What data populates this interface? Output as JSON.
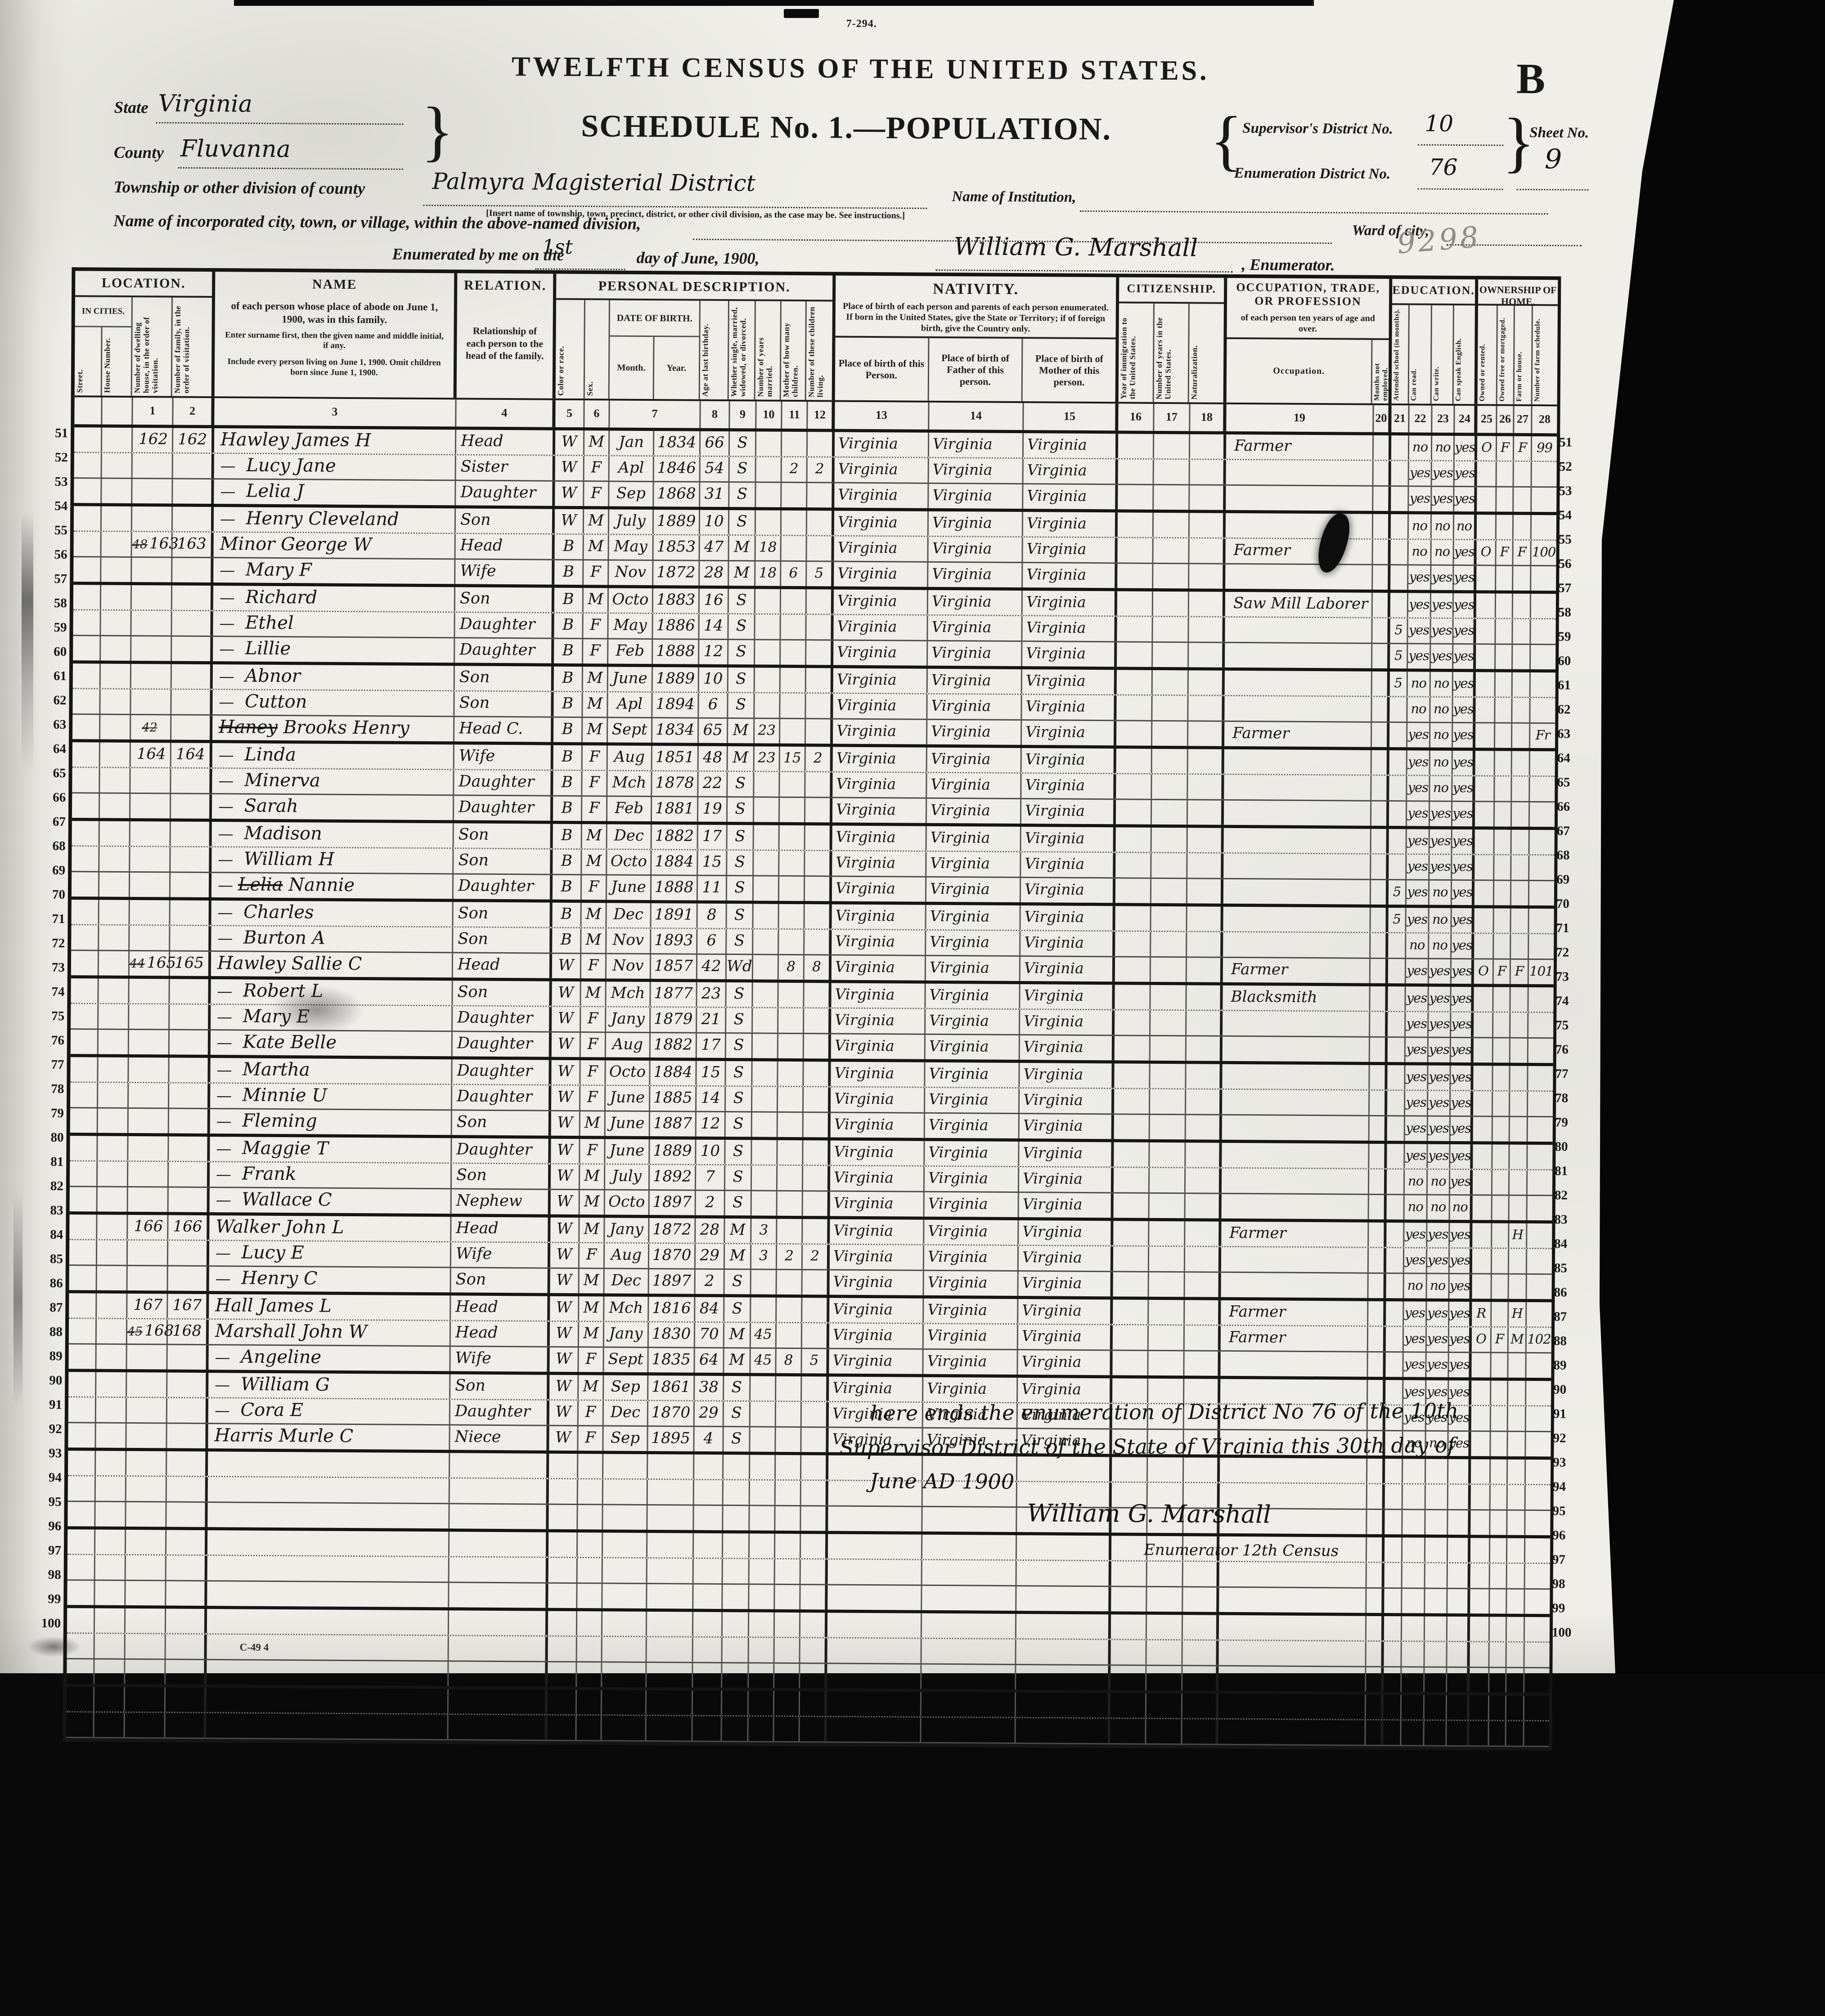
{
  "form": {
    "code": "7-294.",
    "title": "TWELFTH CENSUS OF THE UNITED STATES.",
    "corner_letter": "B",
    "schedule_title": "SCHEDULE No. 1.—POPULATION.",
    "state_label": "State",
    "state_value": "Virginia",
    "county_label": "County",
    "county_value": "Fluvanna",
    "township_label": "Township or other division of county",
    "township_value": "Palmyra Magisterial District",
    "township_note": "[Insert name of township, town, precinct, district, or other civil division, as the case may be.  See instructions.]",
    "institution_label": "Name of Institution,",
    "incorporated_label": "Name of incorporated city, town, or village, within the above-named division,",
    "ward_label": "Ward of city,",
    "supervisor_label": "Supervisor's District No.",
    "supervisor_value": "10",
    "enumeration_label": "Enumeration District No.",
    "enumeration_value": "76",
    "sheet_label": "Sheet No.",
    "sheet_value": "9",
    "enumerated_label_1": "Enumerated by me on the",
    "enumerated_day": "1st",
    "enumerated_label_2": "day of June, 1900,",
    "enumerator_signature": "William G. Marshall",
    "enumerated_label_3": ", Enumerator.",
    "stamp": "9298",
    "bottom_mark": "C-49    4",
    "brace_open": "{",
    "brace_close": "}"
  },
  "table": {
    "groups": {
      "location": "LOCATION.",
      "name": "NAME",
      "relation": "RELATION.",
      "personal": "PERSONAL DESCRIPTION.",
      "nativity": "NATIVITY.",
      "citizenship": "CITIZENSHIP.",
      "occupation": "OCCUPATION, TRADE, OR PROFESSION",
      "education": "EDUCATION.",
      "ownership": "OWNERSHIP OF HOME."
    },
    "cols": {
      "in_cities": "IN CITIES.",
      "street": "Street.",
      "house": "House Number.",
      "dwelling": "Number of dwelling house, in the order of visitation.",
      "family": "Number of family, in the order of visitation.",
      "name_desc": "of each person whose place of abode on June 1, 1900, was in this family.",
      "name_note1": "Enter surname first, then the given name and middle initial, if any.",
      "name_note2": "Include every person living on June 1, 1900.  Omit children born since June 1, 1900.",
      "relation_desc": "Relationship of each person to the head of the family.",
      "color": "Color or race.",
      "sex": "Sex.",
      "dob": "DATE OF BIRTH.",
      "month": "Month.",
      "year": "Year.",
      "age": "Age at last birthday.",
      "marital": "Whether single, married, widowed, or divorced.",
      "years_married": "Number of years married.",
      "mother_of": "Mother of how many children.",
      "children_living": "Number of these children living.",
      "nativity_desc": "Place of birth of each person and parents of each person enumerated.  If born in the United States, give the State or Territory; if of foreign birth, give the Country only.",
      "bp_person": "Place of birth of this Person.",
      "bp_father": "Place of birth of Father of this person.",
      "bp_mother": "Place of birth of Mother of this person.",
      "immigration": "Year of immigration to the United States.",
      "years_us": "Number of years in the United States.",
      "naturalization": "Naturalization.",
      "occupation_sub": "of each person ten years of age and over.",
      "occupation": "Occupation.",
      "months_unemployed": "Months not employed.",
      "attended": "Attended school (in months).",
      "can_read": "Can read.",
      "can_write": "Can write.",
      "can_speak": "Can speak English.",
      "owned_rented": "Owned or rented.",
      "free_mortgaged": "Owned free or mortgaged.",
      "farm_house": "Farm or house.",
      "farm_schedule": "Number of farm schedule."
    },
    "numbers": [
      "",
      "",
      "1",
      "2",
      "3",
      "4",
      "5",
      "6",
      "7",
      "8",
      "9",
      "10",
      "11",
      "12",
      "13",
      "14",
      "15",
      "16",
      "17",
      "18",
      "19",
      "20",
      "21",
      "22",
      "23",
      "24",
      "25",
      "26",
      "27",
      "28"
    ]
  },
  "rows": [
    {
      "n": 51,
      "dwo": "",
      "dw": "162",
      "fam": "162",
      "np": "",
      "name": "Hawley James H",
      "dash": 0,
      "rel": "Head",
      "c": "W",
      "s": "M",
      "mo": "Jan",
      "yr": "1834",
      "age": "66",
      "ms": "S",
      "ym": "",
      "k": "",
      "kl": "",
      "bp": "Virginia",
      "bf": "Virginia",
      "bm": "Virginia",
      "occ": "Farmer",
      "sch": "",
      "rd": "no",
      "wr": "no",
      "en": "yes",
      "own": "O",
      "fm": "F",
      "fh": "F",
      "fn": "99"
    },
    {
      "n": 52,
      "dw": "",
      "fam": "",
      "name": "Lucy Jane",
      "dash": 1,
      "rel": "Sister",
      "c": "W",
      "s": "F",
      "mo": "Apl",
      "yr": "1846",
      "age": "54",
      "ms": "S",
      "ym": "",
      "k": "2",
      "kl": "2",
      "bp": "Virginia",
      "bf": "Virginia",
      "bm": "Virginia",
      "occ": "",
      "rd": "yes",
      "wr": "yes",
      "en": "yes"
    },
    {
      "n": 53,
      "name": "Lelia J",
      "dash": 1,
      "rel": "Daughter",
      "c": "W",
      "s": "F",
      "mo": "Sep",
      "yr": "1868",
      "age": "31",
      "ms": "S",
      "bp": "Virginia",
      "bf": "Virginia",
      "bm": "Virginia",
      "rd": "yes",
      "wr": "yes",
      "en": "yes"
    },
    {
      "n": 54,
      "name": "Henry Cleveland",
      "dash": 1,
      "rel": "Son",
      "c": "W",
      "s": "M",
      "mo": "July",
      "yr": "1889",
      "age": "10",
      "ms": "S",
      "bp": "Virginia",
      "bf": "Virginia",
      "bm": "Virginia",
      "rd": "no",
      "wr": "no",
      "en": "no"
    },
    {
      "n": 55,
      "dwo": "48",
      "dw": "163",
      "fam": "163",
      "name": "Minor George W",
      "dash": 0,
      "rel": "Head",
      "c": "B",
      "s": "M",
      "mo": "May",
      "yr": "1853",
      "age": "47",
      "ms": "M",
      "ym": "18",
      "bp": "Virginia",
      "bf": "Virginia",
      "bm": "Virginia",
      "occ": "Farmer",
      "rd": "no",
      "wr": "no",
      "en": "yes",
      "own": "O",
      "fm": "F",
      "fh": "F",
      "fn": "100"
    },
    {
      "n": 56,
      "name": "Mary F",
      "dash": 1,
      "rel": "Wife",
      "c": "B",
      "s": "F",
      "mo": "Nov",
      "yr": "1872",
      "age": "28",
      "ms": "M",
      "ym": "18",
      "k": "6",
      "kl": "5",
      "bp": "Virginia",
      "bf": "Virginia",
      "bm": "Virginia",
      "rd": "yes",
      "wr": "yes",
      "en": "yes"
    },
    {
      "n": 57,
      "name": "Richard",
      "dash": 1,
      "rel": "Son",
      "c": "B",
      "s": "M",
      "mo": "Octo",
      "yr": "1883",
      "age": "16",
      "ms": "S",
      "bp": "Virginia",
      "bf": "Virginia",
      "bm": "Virginia",
      "occ": "Saw Mill Laborer",
      "rd": "yes",
      "wr": "yes",
      "en": "yes"
    },
    {
      "n": 58,
      "name": "Ethel",
      "dash": 1,
      "rel": "Daughter",
      "c": "B",
      "s": "F",
      "mo": "May",
      "yr": "1886",
      "age": "14",
      "ms": "S",
      "bp": "Virginia",
      "bf": "Virginia",
      "bm": "Virginia",
      "sch": "5",
      "rd": "yes",
      "wr": "yes",
      "en": "yes"
    },
    {
      "n": 59,
      "name": "Lillie",
      "dash": 1,
      "rel": "Daughter",
      "c": "B",
      "s": "F",
      "mo": "Feb",
      "yr": "1888",
      "age": "12",
      "ms": "S",
      "bp": "Virginia",
      "bf": "Virginia",
      "bm": "Virginia",
      "sch": "5",
      "rd": "yes",
      "wr": "yes",
      "en": "yes"
    },
    {
      "n": 60,
      "name": "Abnor",
      "dash": 1,
      "rel": "Son",
      "c": "B",
      "s": "M",
      "mo": "June",
      "yr": "1889",
      "age": "10",
      "ms": "S",
      "bp": "Virginia",
      "bf": "Virginia",
      "bm": "Virginia",
      "sch": "5",
      "rd": "no",
      "wr": "no",
      "en": "yes"
    },
    {
      "n": 61,
      "name": "Cutton",
      "dash": 1,
      "rel": "Son",
      "c": "B",
      "s": "M",
      "mo": "Apl",
      "yr": "1894",
      "age": "6",
      "ms": "S",
      "bp": "Virginia",
      "bf": "Virginia",
      "bm": "Virginia",
      "rd": "no",
      "wr": "no",
      "en": "yes"
    },
    {
      "n": 62,
      "dwo": "42",
      "dw": "",
      "fam": "",
      "np": "Haney",
      "name": "Brooks Henry",
      "dash": 0,
      "rel": "Head C.",
      "c": "B",
      "s": "M",
      "mo": "Sept",
      "yr": "1834",
      "age": "65",
      "ms": "M",
      "ym": "23",
      "bp": "Virginia",
      "bf": "Virginia",
      "bm": "Virginia",
      "occ": "Farmer",
      "rd": "yes",
      "wr": "no",
      "en": "yes",
      "fn": "Fr"
    },
    {
      "n": 63,
      "dw": "164",
      "fam": "164",
      "name": "Linda",
      "dash": 1,
      "rel": "Wife",
      "c": "B",
      "s": "F",
      "mo": "Aug",
      "yr": "1851",
      "age": "48",
      "ms": "M",
      "ym": "23",
      "k": "15",
      "kl": "2",
      "bp": "Virginia",
      "bf": "Virginia",
      "bm": "Virginia",
      "rd": "yes",
      "wr": "no",
      "en": "yes"
    },
    {
      "n": 64,
      "name": "Minerva",
      "dash": 1,
      "rel": "Daughter",
      "c": "B",
      "s": "F",
      "mo": "Mch",
      "yr": "1878",
      "age": "22",
      "ms": "S",
      "bp": "Virginia",
      "bf": "Virginia",
      "bm": "Virginia",
      "rd": "yes",
      "wr": "no",
      "en": "yes"
    },
    {
      "n": 65,
      "name": "Sarah",
      "dash": 1,
      "rel": "Daughter",
      "c": "B",
      "s": "F",
      "mo": "Feb",
      "yr": "1881",
      "age": "19",
      "ms": "S",
      "bp": "Virginia",
      "bf": "Virginia",
      "bm": "Virginia",
      "rd": "yes",
      "wr": "yes",
      "en": "yes"
    },
    {
      "n": 66,
      "name": "Madison",
      "dash": 1,
      "rel": "Son",
      "c": "B",
      "s": "M",
      "mo": "Dec",
      "yr": "1882",
      "age": "17",
      "ms": "S",
      "bp": "Virginia",
      "bf": "Virginia",
      "bm": "Virginia",
      "rd": "yes",
      "wr": "yes",
      "en": "yes"
    },
    {
      "n": 67,
      "name": "William H",
      "dash": 1,
      "rel": "Son",
      "c": "B",
      "s": "M",
      "mo": "Octo",
      "yr": "1884",
      "age": "15",
      "ms": "S",
      "bp": "Virginia",
      "bf": "Virginia",
      "bm": "Virginia",
      "rd": "yes",
      "wr": "yes",
      "en": "yes"
    },
    {
      "n": 68,
      "np": "Lelia",
      "name": "Nannie",
      "dash": 1,
      "rel": "Daughter",
      "c": "B",
      "s": "F",
      "mo": "June",
      "yr": "1888",
      "age": "11",
      "ms": "S",
      "bp": "Virginia",
      "bf": "Virginia",
      "bm": "Virginia",
      "sch": "5",
      "rd": "yes",
      "wr": "no",
      "en": "yes"
    },
    {
      "n": 69,
      "name": "Charles",
      "dash": 1,
      "rel": "Son",
      "c": "B",
      "s": "M",
      "mo": "Dec",
      "yr": "1891",
      "age": "8",
      "ms": "S",
      "bp": "Virginia",
      "bf": "Virginia",
      "bm": "Virginia",
      "sch": "5",
      "rd": "yes",
      "wr": "no",
      "en": "yes"
    },
    {
      "n": 70,
      "name": "Burton A",
      "dash": 1,
      "rel": "Son",
      "c": "B",
      "s": "M",
      "mo": "Nov",
      "yr": "1893",
      "age": "6",
      "ms": "S",
      "bp": "Virginia",
      "bf": "Virginia",
      "bm": "Virginia",
      "rd": "no",
      "wr": "no",
      "en": "yes"
    },
    {
      "n": 71,
      "dwo": "44",
      "dw": "165",
      "fam": "165",
      "name": "Hawley Sallie C",
      "dash": 0,
      "rel": "Head",
      "c": "W",
      "s": "F",
      "mo": "Nov",
      "yr": "1857",
      "age": "42",
      "ms": "Wd",
      "k": "8",
      "kl": "8",
      "bp": "Virginia",
      "bf": "Virginia",
      "bm": "Virginia",
      "occ": "Farmer",
      "rd": "yes",
      "wr": "yes",
      "en": "yes",
      "own": "O",
      "fm": "F",
      "fh": "F",
      "fn": "101"
    },
    {
      "n": 72,
      "name": "Robert L",
      "dash": 1,
      "rel": "Son",
      "c": "W",
      "s": "M",
      "mo": "Mch",
      "yr": "1877",
      "age": "23",
      "ms": "S",
      "bp": "Virginia",
      "bf": "Virginia",
      "bm": "Virginia",
      "occ": "Blacksmith",
      "rd": "yes",
      "wr": "yes",
      "en": "yes"
    },
    {
      "n": 73,
      "name": "Mary E",
      "dash": 1,
      "rel": "Daughter",
      "c": "W",
      "s": "F",
      "mo": "Jany",
      "yr": "1879",
      "age": "21",
      "ms": "S",
      "bp": "Virginia",
      "bf": "Virginia",
      "bm": "Virginia",
      "rd": "yes",
      "wr": "yes",
      "en": "yes"
    },
    {
      "n": 74,
      "name": "Kate Belle",
      "dash": 1,
      "rel": "Daughter",
      "c": "W",
      "s": "F",
      "mo": "Aug",
      "yr": "1882",
      "age": "17",
      "ms": "S",
      "bp": "Virginia",
      "bf": "Virginia",
      "bm": "Virginia",
      "rd": "yes",
      "wr": "yes",
      "en": "yes"
    },
    {
      "n": 75,
      "name": "Martha",
      "dash": 1,
      "rel": "Daughter",
      "c": "W",
      "s": "F",
      "mo": "Octo",
      "yr": "1884",
      "age": "15",
      "ms": "S",
      "bp": "Virginia",
      "bf": "Virginia",
      "bm": "Virginia",
      "rd": "yes",
      "wr": "yes",
      "en": "yes"
    },
    {
      "n": 76,
      "name": "Minnie U",
      "dash": 1,
      "rel": "Daughter",
      "c": "W",
      "s": "F",
      "mo": "June",
      "yr": "1885",
      "age": "14",
      "ms": "S",
      "bp": "Virginia",
      "bf": "Virginia",
      "bm": "Virginia",
      "rd": "yes",
      "wr": "yes",
      "en": "yes"
    },
    {
      "n": 77,
      "name": "Fleming",
      "dash": 1,
      "rel": "Son",
      "c": "W",
      "s": "M",
      "mo": "June",
      "yr": "1887",
      "age": "12",
      "ms": "S",
      "bp": "Virginia",
      "bf": "Virginia",
      "bm": "Virginia",
      "rd": "yes",
      "wr": "yes",
      "en": "yes"
    },
    {
      "n": 78,
      "name": "Maggie T",
      "dash": 1,
      "rel": "Daughter",
      "c": "W",
      "s": "F",
      "mo": "June",
      "yr": "1889",
      "age": "10",
      "ms": "S",
      "bp": "Virginia",
      "bf": "Virginia",
      "bm": "Virginia",
      "rd": "yes",
      "wr": "yes",
      "en": "yes"
    },
    {
      "n": 79,
      "name": "Frank",
      "dash": 1,
      "rel": "Son",
      "c": "W",
      "s": "M",
      "mo": "July",
      "yr": "1892",
      "age": "7",
      "ms": "S",
      "bp": "Virginia",
      "bf": "Virginia",
      "bm": "Virginia",
      "rd": "no",
      "wr": "no",
      "en": "yes"
    },
    {
      "n": 80,
      "name": "Wallace C",
      "dash": 1,
      "rel": "Nephew",
      "c": "W",
      "s": "M",
      "mo": "Octo",
      "yr": "1897",
      "age": "2",
      "ms": "S",
      "bp": "Virginia",
      "bf": "Virginia",
      "bm": "Virginia",
      "rd": "no",
      "wr": "no",
      "en": "no"
    },
    {
      "n": 81,
      "dw": "166",
      "fam": "166",
      "name": "Walker John L",
      "dash": 0,
      "rel": "Head",
      "c": "W",
      "s": "M",
      "mo": "Jany",
      "yr": "1872",
      "age": "28",
      "ms": "M",
      "ym": "3",
      "bp": "Virginia",
      "bf": "Virginia",
      "bm": "Virginia",
      "occ": "Farmer",
      "rd": "yes",
      "wr": "yes",
      "en": "yes",
      "fh": "H"
    },
    {
      "n": 82,
      "name": "Lucy E",
      "dash": 1,
      "rel": "Wife",
      "c": "W",
      "s": "F",
      "mo": "Aug",
      "yr": "1870",
      "age": "29",
      "ms": "M",
      "ym": "3",
      "k": "2",
      "kl": "2",
      "bp": "Virginia",
      "bf": "Virginia",
      "bm": "Virginia",
      "rd": "yes",
      "wr": "yes",
      "en": "yes"
    },
    {
      "n": 83,
      "name": "Henry C",
      "dash": 1,
      "rel": "Son",
      "c": "W",
      "s": "M",
      "mo": "Dec",
      "yr": "1897",
      "age": "2",
      "ms": "S",
      "bp": "Virginia",
      "bf": "Virginia",
      "bm": "Virginia",
      "rd": "no",
      "wr": "no",
      "en": "yes"
    },
    {
      "n": 84,
      "dw": "167",
      "fam": "167",
      "name": "Hall James L",
      "dash": 0,
      "rel": "Head",
      "c": "W",
      "s": "M",
      "mo": "Mch",
      "yr": "1816",
      "age": "84",
      "ms": "S",
      "bp": "Virginia",
      "bf": "Virginia",
      "bm": "Virginia",
      "occ": "Farmer",
      "rd": "yes",
      "wr": "yes",
      "en": "yes",
      "own": "R",
      "fh": "H"
    },
    {
      "n": 85,
      "dwo": "45",
      "dw": "168",
      "fam": "168",
      "name": "Marshall John W",
      "dash": 0,
      "rel": "Head",
      "c": "W",
      "s": "M",
      "mo": "Jany",
      "yr": "1830",
      "age": "70",
      "ms": "M",
      "ym": "45",
      "bp": "Virginia",
      "bf": "Virginia",
      "bm": "Virginia",
      "occ": "Farmer",
      "rd": "yes",
      "wr": "yes",
      "en": "yes",
      "own": "O",
      "fm": "F",
      "fh": "M",
      "fn": "102"
    },
    {
      "n": 86,
      "name": "Angeline",
      "dash": 1,
      "rel": "Wife",
      "c": "W",
      "s": "F",
      "mo": "Sept",
      "yr": "1835",
      "age": "64",
      "ms": "M",
      "ym": "45",
      "k": "8",
      "kl": "5",
      "bp": "Virginia",
      "bf": "Virginia",
      "bm": "Virginia",
      "rd": "yes",
      "wr": "yes",
      "en": "yes"
    },
    {
      "n": 87,
      "name": "William G",
      "dash": 1,
      "rel": "Son",
      "c": "W",
      "s": "M",
      "mo": "Sep",
      "yr": "1861",
      "age": "38",
      "ms": "S",
      "bp": "Virginia",
      "bf": "Virginia",
      "bm": "Virginia",
      "rd": "yes",
      "wr": "yes",
      "en": "yes"
    },
    {
      "n": 88,
      "name": "Cora E",
      "dash": 1,
      "rel": "Daughter",
      "c": "W",
      "s": "F",
      "mo": "Dec",
      "yr": "1870",
      "age": "29",
      "ms": "S",
      "bp": "Virginia",
      "bf": "Virginia",
      "bm": "Virginia",
      "rd": "yes",
      "wr": "yes",
      "en": "yes"
    },
    {
      "n": 89,
      "name": "Harris Murle C",
      "dash": 0,
      "rel": "Niece",
      "c": "W",
      "s": "F",
      "mo": "Sep",
      "yr": "1895",
      "age": "4",
      "ms": "S",
      "bp": "Virginia",
      "bf": "Virginia",
      "bm": "Virginia",
      "rd": "no",
      "wr": "no",
      "en": "yes"
    },
    {
      "n": 90
    },
    {
      "n": 91
    },
    {
      "n": 92
    },
    {
      "n": 93
    },
    {
      "n": 94
    },
    {
      "n": 95
    },
    {
      "n": 96
    },
    {
      "n": 97
    },
    {
      "n": 98
    },
    {
      "n": 99
    },
    {
      "n": 100
    }
  ],
  "closing": {
    "line1": "here ends the enumeration of District No 76 of the 10th",
    "line2": "Supervisor District of the State of Virginia this 30th day of",
    "line3": "June AD 1900",
    "signature": "William G. Marshall",
    "subscript": "Enumerator  12th Census"
  }
}
